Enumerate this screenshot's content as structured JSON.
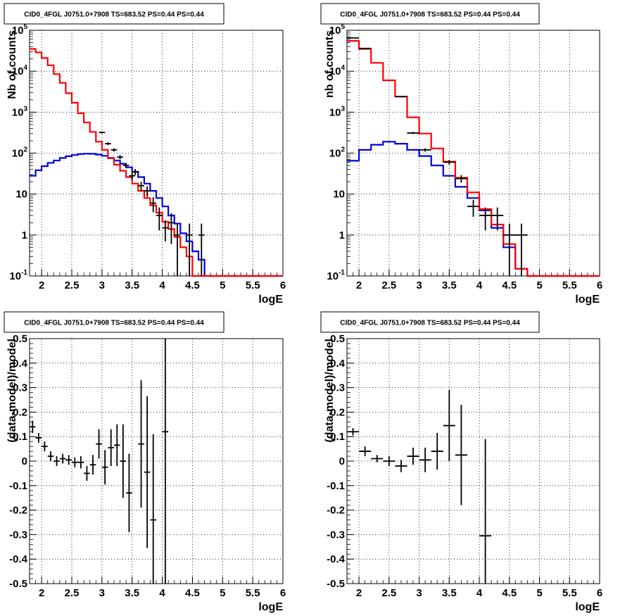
{
  "colors": {
    "data": "#000000",
    "total_model": "#ff0000",
    "component_model": "#0000dd",
    "grid": "#000000"
  },
  "chart_data": [
    {
      "type": "line",
      "title": "CID0_4FGL J0751.0+7908 TS=683.52 PS=0.44 PS=0.44",
      "xlabel": "logE",
      "ylabel": "Nb of counts",
      "xlim": [
        1.8,
        6.0
      ],
      "ylim": [
        0.1,
        100000
      ],
      "log_y": true,
      "grid": true,
      "x_ticks": [
        "2",
        "2.5",
        "3",
        "3.5",
        "4",
        "4.5",
        "5",
        "5.5",
        "6"
      ],
      "y_ticks": [
        "10-1",
        "1",
        "10",
        "102",
        "103",
        "104",
        "105"
      ],
      "bin_edges": [
        1.8,
        1.9,
        2.0,
        2.1,
        2.2,
        2.3,
        2.4,
        2.5,
        2.6,
        2.7,
        2.8,
        2.9,
        3.0,
        3.1,
        3.2,
        3.3,
        3.4,
        3.5,
        3.6,
        3.7,
        3.8,
        3.9,
        4.0,
        4.1,
        4.2,
        4.3,
        4.4,
        4.5,
        4.6,
        4.7,
        4.8,
        4.9,
        5.0,
        5.1,
        5.2,
        5.3,
        5.4,
        5.5,
        5.6,
        5.7,
        5.8,
        5.9,
        6.0
      ],
      "series": [
        {
          "name": "",
          "role": "total_model",
          "values": [
            35000,
            29000,
            21000,
            14000,
            8500,
            5200,
            2900,
            1700,
            940,
            560,
            330,
            190,
            120,
            75,
            52,
            37,
            26,
            18,
            12,
            8,
            5.3,
            3.5,
            2.1,
            1.4,
            0.9,
            0.5,
            0.3,
            0.1,
            0.1,
            0.1,
            0.1,
            0.1,
            0.1,
            0.1,
            0.1,
            0.1,
            0.1,
            0.1,
            0.1,
            0.1,
            0.1,
            0.1
          ]
        },
        {
          "name": "",
          "role": "component_model",
          "values": [
            28,
            38,
            48,
            58,
            66,
            76,
            84,
            90,
            95,
            97,
            96,
            92,
            86,
            76,
            66,
            55,
            45,
            35,
            26,
            18,
            12,
            8,
            5,
            3,
            1.9,
            1.1,
            0.7,
            0.4,
            0.25,
            0.1,
            0.1,
            0.1,
            0.1,
            0.1,
            0.1,
            0.1,
            0.1,
            0.1,
            0.1,
            0.1,
            0.1,
            0.1
          ]
        }
      ],
      "points": [
        {
          "x": 3.0,
          "y": 320,
          "yerr": 18
        },
        {
          "x": 3.1,
          "y": 170,
          "yerr": 13
        },
        {
          "x": 3.2,
          "y": 120,
          "yerr": 11
        },
        {
          "x": 3.3,
          "y": 80,
          "yerr": 9
        },
        {
          "x": 3.4,
          "y": 50,
          "yerr": 7
        },
        {
          "x": 3.5,
          "y": 28,
          "yerr": 5.3
        },
        {
          "x": 3.55,
          "y": 35,
          "yerr": 6
        },
        {
          "x": 3.65,
          "y": 16,
          "yerr": 4
        },
        {
          "x": 3.75,
          "y": 12,
          "yerr": 3.5
        },
        {
          "x": 3.85,
          "y": 6,
          "yerr": 2.4
        },
        {
          "x": 3.95,
          "y": 3,
          "yerr": 1.7
        },
        {
          "x": 4.05,
          "y": 1.5,
          "yerr": 0.8
        },
        {
          "x": 4.15,
          "y": 2,
          "yerr": 1.4
        },
        {
          "x": 4.25,
          "y": 1,
          "yerr": 0.9
        },
        {
          "x": 4.45,
          "y": 1,
          "yerr": 0.9
        },
        {
          "x": 4.65,
          "y": 1,
          "yerr": 0.9
        }
      ]
    },
    {
      "type": "line",
      "title": "CID0_4FGL J0751.0+7908 TS=683.52 PS=0.44 PS=0.44",
      "xlabel": "logE",
      "ylabel": "nb of counts",
      "xlim": [
        1.8,
        6.0
      ],
      "ylim": [
        0.1,
        100000
      ],
      "log_y": true,
      "grid": true,
      "x_ticks": [
        "2",
        "2.5",
        "3",
        "3.5",
        "4",
        "4.5",
        "5",
        "5.5",
        "6"
      ],
      "y_ticks": [
        "10-1",
        "1",
        "10",
        "102",
        "103",
        "104",
        "105"
      ],
      "bin_edges": [
        1.8,
        2.0,
        2.2,
        2.4,
        2.6,
        2.8,
        3.0,
        3.2,
        3.4,
        3.6,
        3.8,
        4.0,
        4.2,
        4.4,
        4.6,
        4.8,
        5.0,
        5.2,
        5.4,
        5.6,
        5.8,
        6.0
      ],
      "series": [
        {
          "name": "",
          "role": "total_model",
          "values": [
            55000,
            35000,
            16000,
            6000,
            2400,
            750,
            300,
            130,
            62,
            25,
            11,
            4.3,
            1.8,
            0.6,
            0.15,
            0.1,
            0.1,
            0.1,
            0.1,
            0.1,
            0.1
          ]
        },
        {
          "name": "",
          "role": "component_model",
          "values": [
            65,
            120,
            160,
            190,
            170,
            120,
            85,
            50,
            28,
            15,
            8,
            4,
            1.5,
            0.5,
            0.15,
            0.1,
            0.1,
            0.1,
            0.1,
            0.1,
            0.1
          ]
        }
      ],
      "points": [
        {
          "x": 1.9,
          "y": 65000,
          "yerr": 255
        },
        {
          "x": 2.1,
          "y": 36000,
          "yerr": 190
        },
        {
          "x": 2.7,
          "y": 2400,
          "yerr": 49
        },
        {
          "x": 2.9,
          "y": 310,
          "yerr": 18
        },
        {
          "x": 3.1,
          "y": 120,
          "yerr": 11
        },
        {
          "x": 3.5,
          "y": 60,
          "yerr": 8
        },
        {
          "x": 3.7,
          "y": 24,
          "yerr": 5
        },
        {
          "x": 3.9,
          "y": 5,
          "yerr": 2.2
        },
        {
          "x": 4.1,
          "y": 3,
          "yerr": 1.7
        },
        {
          "x": 4.3,
          "y": 3,
          "yerr": 1.7
        },
        {
          "x": 4.5,
          "y": 1,
          "yerr": 0.9
        },
        {
          "x": 4.7,
          "y": 1,
          "yerr": 0.9
        }
      ]
    },
    {
      "type": "scatter",
      "title": "CID0_4FGL J0751.0+7908 TS=683.52 PS=0.44 PS=0.44",
      "xlabel": "logE",
      "ylabel": "(data-model)/model",
      "xlim": [
        1.8,
        6.0
      ],
      "ylim": [
        -0.5,
        0.5
      ],
      "grid": true,
      "x_ticks": [
        "2",
        "2.5",
        "3",
        "3.5",
        "4",
        "4.5",
        "5",
        "5.5",
        "6"
      ],
      "y_ticks": [
        "-0.5",
        "-0.4",
        "-0.3",
        "-0.2",
        "-0.1",
        "0",
        "0.1",
        "0.2",
        "0.3",
        "0.4",
        "0.5"
      ],
      "points": [
        {
          "x": 1.85,
          "y": 0.14,
          "xerr": 0.05,
          "yerr": 0.025
        },
        {
          "x": 1.95,
          "y": 0.095,
          "xerr": 0.05,
          "yerr": 0.02
        },
        {
          "x": 2.05,
          "y": 0.06,
          "xerr": 0.05,
          "yerr": 0.02
        },
        {
          "x": 2.15,
          "y": 0.02,
          "xerr": 0.05,
          "yerr": 0.02
        },
        {
          "x": 2.25,
          "y": 0.0,
          "xerr": 0.05,
          "yerr": 0.02
        },
        {
          "x": 2.35,
          "y": 0.01,
          "xerr": 0.05,
          "yerr": 0.02
        },
        {
          "x": 2.45,
          "y": 0.005,
          "xerr": 0.05,
          "yerr": 0.02
        },
        {
          "x": 2.55,
          "y": -0.005,
          "xerr": 0.05,
          "yerr": 0.02
        },
        {
          "x": 2.65,
          "y": -0.005,
          "xerr": 0.05,
          "yerr": 0.025
        },
        {
          "x": 2.75,
          "y": -0.05,
          "xerr": 0.05,
          "yerr": 0.03
        },
        {
          "x": 2.85,
          "y": -0.015,
          "xerr": 0.05,
          "yerr": 0.04
        },
        {
          "x": 2.95,
          "y": 0.07,
          "xerr": 0.05,
          "yerr": 0.06
        },
        {
          "x": 3.05,
          "y": -0.025,
          "xerr": 0.05,
          "yerr": 0.07
        },
        {
          "x": 3.15,
          "y": 0.055,
          "xerr": 0.05,
          "yerr": 0.075
        },
        {
          "x": 3.25,
          "y": 0.065,
          "xerr": 0.05,
          "yerr": 0.085
        },
        {
          "x": 3.35,
          "y": 0.0,
          "xerr": 0.05,
          "yerr": 0.15
        },
        {
          "x": 3.45,
          "y": -0.13,
          "xerr": 0.05,
          "yerr": 0.16
        },
        {
          "x": 3.65,
          "y": 0.07,
          "xerr": 0.05,
          "yerr": 0.26
        },
        {
          "x": 3.75,
          "y": -0.045,
          "xerr": 0.05,
          "yerr": 0.31
        },
        {
          "x": 3.85,
          "y": -0.24,
          "xerr": 0.05,
          "yerr": 0.35
        },
        {
          "x": 4.05,
          "y": 0.12,
          "xerr": 0.05,
          "yerr": 0.62
        }
      ]
    },
    {
      "type": "scatter",
      "title": "CID0_4FGL J0751.0+7908 TS=683.52 PS=0.44 PS=0.44",
      "xlabel": "logE",
      "ylabel": "(data-model)/model",
      "xlim": [
        1.8,
        6.0
      ],
      "ylim": [
        -0.5,
        0.5
      ],
      "grid": true,
      "x_ticks": [
        "2",
        "2.5",
        "3",
        "3.5",
        "4",
        "4.5",
        "5",
        "5.5",
        "6"
      ],
      "y_ticks": [
        "-0.5",
        "-0.4",
        "-0.3",
        "-0.2",
        "-0.1",
        "0",
        "0.1",
        "0.2",
        "0.3",
        "0.4",
        "0.5"
      ],
      "points": [
        {
          "x": 1.9,
          "y": 0.12,
          "xerr": 0.1,
          "yerr": 0.015
        },
        {
          "x": 2.1,
          "y": 0.04,
          "xerr": 0.1,
          "yerr": 0.02
        },
        {
          "x": 2.3,
          "y": 0.01,
          "xerr": 0.1,
          "yerr": 0.015
        },
        {
          "x": 2.5,
          "y": 0.0,
          "xerr": 0.1,
          "yerr": 0.02
        },
        {
          "x": 2.7,
          "y": -0.02,
          "xerr": 0.1,
          "yerr": 0.025
        },
        {
          "x": 2.9,
          "y": 0.02,
          "xerr": 0.1,
          "yerr": 0.035
        },
        {
          "x": 3.1,
          "y": 0.005,
          "xerr": 0.1,
          "yerr": 0.05
        },
        {
          "x": 3.3,
          "y": 0.04,
          "xerr": 0.1,
          "yerr": 0.075
        },
        {
          "x": 3.5,
          "y": 0.145,
          "xerr": 0.1,
          "yerr": 0.145
        },
        {
          "x": 3.7,
          "y": 0.025,
          "xerr": 0.1,
          "yerr": 0.205
        },
        {
          "x": 4.1,
          "y": -0.305,
          "xerr": 0.1,
          "yerr": 0.395
        }
      ]
    }
  ]
}
